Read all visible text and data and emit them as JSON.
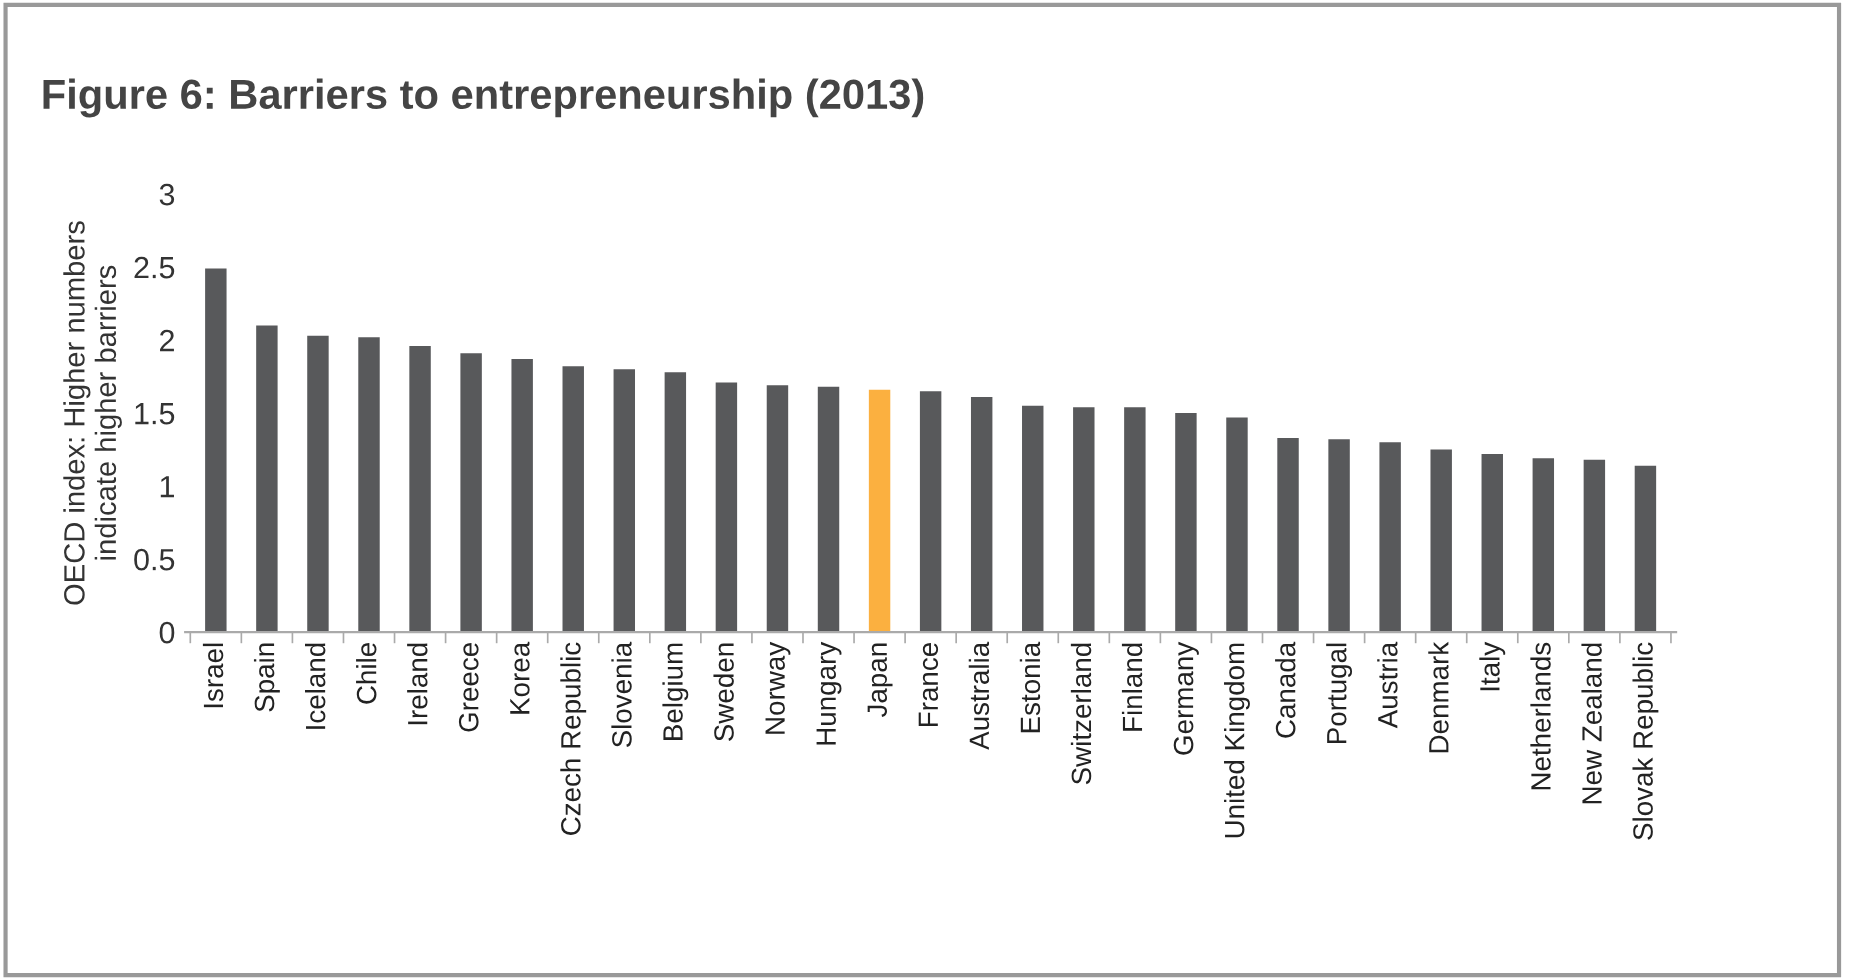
{
  "chart_data": {
    "type": "bar",
    "title": "Figure 6: Barriers to entrepreneurship (2013)",
    "ylabel": "OECD index: Higher numbers\nindicate higher barriers",
    "categories": [
      "Israel",
      "Spain",
      "Iceland",
      "Chile",
      "Ireland",
      "Greece",
      "Korea",
      "Czech Republic",
      "Slovenia",
      "Belgium",
      "Sweden",
      "Norway",
      "Hungary",
      "Japan",
      "France",
      "Australia",
      "Estonia",
      "Switzerland",
      "Finland",
      "Germany",
      "United Kingdom",
      "Canada",
      "Portugal",
      "Austria",
      "Denmark",
      "Italy",
      "Netherlands",
      "New Zealand",
      "Slovak Republic"
    ],
    "values": [
      2.49,
      2.1,
      2.03,
      2.02,
      1.96,
      1.91,
      1.87,
      1.82,
      1.8,
      1.78,
      1.71,
      1.69,
      1.68,
      1.66,
      1.65,
      1.61,
      1.55,
      1.54,
      1.54,
      1.5,
      1.47,
      1.33,
      1.32,
      1.3,
      1.25,
      1.22,
      1.19,
      1.18,
      1.14
    ],
    "colors": [
      "#58595b",
      "#58595b",
      "#58595b",
      "#58595b",
      "#58595b",
      "#58595b",
      "#58595b",
      "#58595b",
      "#58595b",
      "#58595b",
      "#58595b",
      "#58595b",
      "#58595b",
      "#fbb040",
      "#58595b",
      "#58595b",
      "#58595b",
      "#58595b",
      "#58595b",
      "#58595b",
      "#58595b",
      "#58595b",
      "#58595b",
      "#58595b",
      "#58595b",
      "#58595b",
      "#58595b",
      "#58595b",
      "#58595b"
    ],
    "ylim": [
      0,
      3
    ],
    "yticks": [
      0,
      0.5,
      1,
      1.5,
      2,
      2.5,
      3
    ],
    "grid": false,
    "legend": false
  }
}
